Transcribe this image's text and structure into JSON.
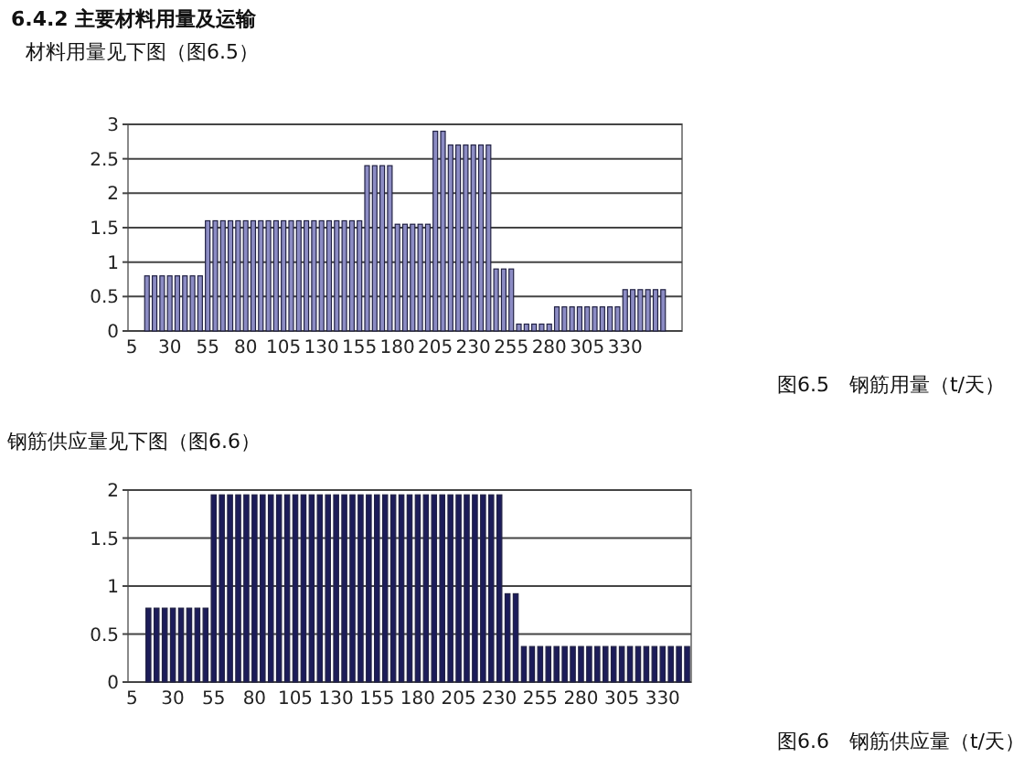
{
  "chart_data": [
    {
      "type": "bar",
      "title": "6.4.2 主要材料用量及运输",
      "subtitle": "材料用量见下图（图6.5）",
      "annotations": [
        "图6.5　钢筋用量（t/天）"
      ],
      "categories": [
        "5",
        null,
        null,
        null,
        null,
        "30",
        null,
        null,
        null,
        null,
        "55",
        null,
        null,
        null,
        null,
        "80",
        null,
        null,
        null,
        null,
        "105",
        null,
        null,
        null,
        null,
        "130",
        null,
        null,
        null,
        null,
        "155",
        null,
        null,
        null,
        null,
        "180",
        null,
        null,
        null,
        null,
        "205",
        null,
        null,
        null,
        null,
        "230",
        null,
        null,
        null,
        null,
        "255",
        null,
        null,
        null,
        null,
        "280",
        null,
        null,
        null,
        null,
        "305",
        null,
        null,
        null,
        null,
        "330",
        null,
        null,
        null,
        null,
        null,
        null,
        null
      ],
      "values": [
        0,
        0,
        0.8,
        0.8,
        0.8,
        0.8,
        0.8,
        0.8,
        0.8,
        0.8,
        1.6,
        1.6,
        1.6,
        1.6,
        1.6,
        1.6,
        1.6,
        1.6,
        1.6,
        1.6,
        1.6,
        1.6,
        1.6,
        1.6,
        1.6,
        1.6,
        1.6,
        1.6,
        1.6,
        1.6,
        1.6,
        2.4,
        2.4,
        2.4,
        2.4,
        1.55,
        1.55,
        1.55,
        1.55,
        1.55,
        2.9,
        2.9,
        2.7,
        2.7,
        2.7,
        2.7,
        2.7,
        2.7,
        0.9,
        0.9,
        0.9,
        0.1,
        0.1,
        0.1,
        0.1,
        0.1,
        0.35,
        0.35,
        0.35,
        0.35,
        0.35,
        0.35,
        0.35,
        0.35,
        0.35,
        0.6,
        0.6,
        0.6,
        0.6,
        0.6,
        0.6,
        0,
        0
      ],
      "color": "#8c8cc4",
      "ylim": [
        0,
        3
      ],
      "yticks": [
        0,
        0.5,
        1,
        1.5,
        2,
        2.5,
        3
      ],
      "grid": "y"
    },
    {
      "type": "bar",
      "title": "钢筋供应量见下图（图6.6）",
      "annotations": [
        "图6.6　钢筋供应量（t/天）"
      ],
      "categories": [
        "5",
        null,
        null,
        null,
        null,
        "30",
        null,
        null,
        null,
        null,
        "55",
        null,
        null,
        null,
        null,
        "80",
        null,
        null,
        null,
        null,
        "105",
        null,
        null,
        null,
        null,
        "130",
        null,
        null,
        null,
        null,
        "155",
        null,
        null,
        null,
        null,
        "180",
        null,
        null,
        null,
        null,
        "205",
        null,
        null,
        null,
        null,
        "230",
        null,
        null,
        null,
        null,
        "255",
        null,
        null,
        null,
        null,
        "280",
        null,
        null,
        null,
        null,
        "305",
        null,
        null,
        null,
        null,
        "330",
        null,
        null,
        null
      ],
      "values": [
        0,
        0,
        0.77,
        0.77,
        0.77,
        0.77,
        0.77,
        0.77,
        0.77,
        0.77,
        1.95,
        1.95,
        1.95,
        1.95,
        1.95,
        1.95,
        1.95,
        1.95,
        1.95,
        1.95,
        1.95,
        1.95,
        1.95,
        1.95,
        1.95,
        1.95,
        1.95,
        1.95,
        1.95,
        1.95,
        1.95,
        1.95,
        1.95,
        1.95,
        1.95,
        1.95,
        1.95,
        1.95,
        1.95,
        1.95,
        1.95,
        1.95,
        1.95,
        1.95,
        1.95,
        1.95,
        0.92,
        0.92,
        0.37,
        0.37,
        0.37,
        0.37,
        0.37,
        0.37,
        0.37,
        0.37,
        0.37,
        0.37,
        0.37,
        0.37,
        0.37,
        0.37,
        0.37,
        0.37,
        0.37,
        0.37,
        0.37,
        0.37,
        0.37
      ],
      "color": "#1c1c5a",
      "ylim": [
        0,
        2
      ],
      "yticks": [
        0,
        0.5,
        1,
        1.5,
        2
      ],
      "grid": "y"
    }
  ]
}
